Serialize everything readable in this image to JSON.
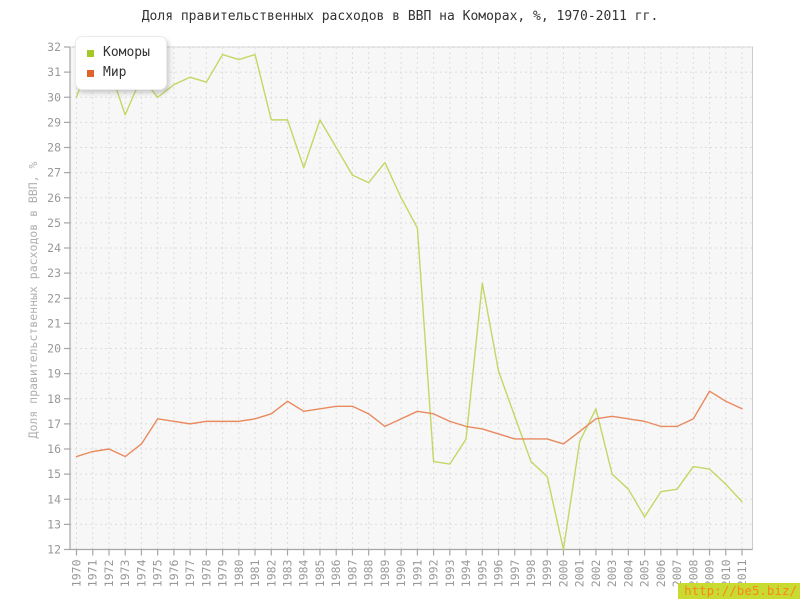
{
  "watermark": {
    "text": "http://be5.biz/",
    "bg_color": "#c9da31",
    "text_color": "#f6881f"
  },
  "chart_data": {
    "type": "line",
    "title": "Доля правительственных расходов в ВВП на Коморах, %, 1970-2011 гг.",
    "xlabel": "",
    "ylabel": "Доля правительственных расходов в ВВП, %",
    "ylim": [
      12,
      32
    ],
    "y_tick_step": 1,
    "grid": "dashed both axes",
    "legend_position": "top-left inside plot",
    "plot_bg": "#f7f7f7",
    "grid_color": "#dddddd",
    "axis_color": "#a6a6a6",
    "tick_label_color": "#999999",
    "categories": [
      "1970",
      "1971",
      "1972",
      "1973",
      "1974",
      "1975",
      "1976",
      "1977",
      "1978",
      "1979",
      "1980",
      "1981",
      "1982",
      "1983",
      "1984",
      "1985",
      "1986",
      "1987",
      "1988",
      "1989",
      "1990",
      "1991",
      "1992",
      "1993",
      "1994",
      "1995",
      "1996",
      "1997",
      "1998",
      "1999",
      "2000",
      "2001",
      "2002",
      "2003",
      "2004",
      "2005",
      "2006",
      "2007",
      "2008",
      "2009",
      "2010",
      "2011"
    ],
    "series": [
      {
        "name": "Коморы",
        "swatch_color": "#a5c829",
        "line_color": "#c3d765",
        "values": [
          30.0,
          31.8,
          31.2,
          29.3,
          30.8,
          30.0,
          30.5,
          30.8,
          30.6,
          31.7,
          31.5,
          31.7,
          29.1,
          29.1,
          27.2,
          29.1,
          28.0,
          26.9,
          26.6,
          27.4,
          26.0,
          24.8,
          15.5,
          15.4,
          16.4,
          22.6,
          19.1,
          17.3,
          15.5,
          14.9,
          12.0,
          16.3,
          17.6,
          15.0,
          14.4,
          13.3,
          14.3,
          14.4,
          15.3,
          15.2,
          14.6,
          13.9
        ]
      },
      {
        "name": "Мир",
        "swatch_color": "#e2622b",
        "line_color": "#e98a5e",
        "values": [
          15.7,
          15.9,
          16.0,
          15.7,
          16.2,
          17.2,
          17.1,
          17.0,
          17.1,
          17.1,
          17.1,
          17.2,
          17.4,
          17.9,
          17.5,
          17.6,
          17.7,
          17.7,
          17.4,
          16.9,
          17.2,
          17.5,
          17.4,
          17.1,
          16.9,
          16.8,
          16.6,
          16.4,
          16.4,
          16.4,
          16.2,
          16.7,
          17.2,
          17.3,
          17.2,
          17.1,
          16.9,
          16.9,
          17.2,
          18.3,
          17.9,
          17.6
        ]
      }
    ]
  }
}
